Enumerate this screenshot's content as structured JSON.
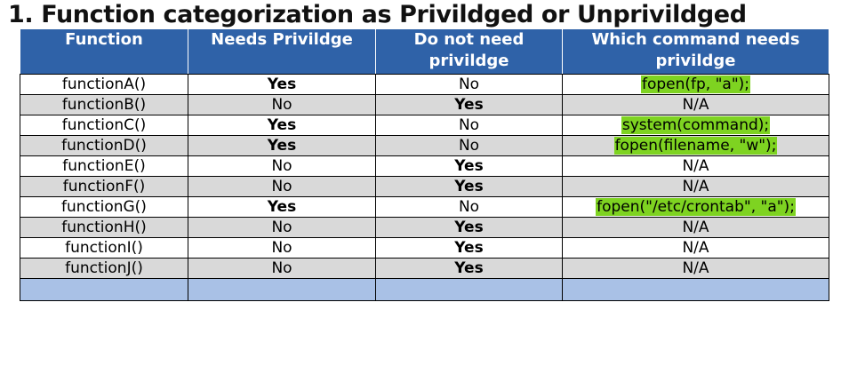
{
  "title": "1. Function categorization as Privildged or Unprivildged",
  "table": {
    "headers": [
      "Function",
      "Needs Privildge",
      "Do not need privildge",
      "Which command needs privildge"
    ],
    "rows": [
      {
        "function": "functionA()",
        "needs": "Yes",
        "not_need": "No",
        "command": "fopen(fp, \"a\");",
        "highlight": true
      },
      {
        "function": "functionB()",
        "needs": "No",
        "not_need": "Yes",
        "command": "N/A",
        "highlight": false
      },
      {
        "function": "functionC()",
        "needs": "Yes",
        "not_need": "No",
        "command": "system(command);",
        "highlight": true
      },
      {
        "function": "functionD()",
        "needs": "Yes",
        "not_need": "No",
        "command": "fopen(filename, \"w\");",
        "highlight": true
      },
      {
        "function": "functionE()",
        "needs": "No",
        "not_need": "Yes",
        "command": "N/A",
        "highlight": false
      },
      {
        "function": "functionF()",
        "needs": "No",
        "not_need": "Yes",
        "command": "N/A",
        "highlight": false
      },
      {
        "function": "functionG()",
        "needs": "Yes",
        "not_need": "No",
        "command": "fopen(\"/etc/crontab\", \"a\");",
        "highlight": true
      },
      {
        "function": "functionH()",
        "needs": "No",
        "not_need": "Yes",
        "command": "N/A",
        "highlight": false
      },
      {
        "function": "functionI()",
        "needs": "No",
        "not_need": "Yes",
        "command": "N/A",
        "highlight": false
      },
      {
        "function": "functionJ()",
        "needs": "No",
        "not_need": "Yes",
        "command": "N/A",
        "highlight": false
      }
    ]
  },
  "colors": {
    "header_bg": "#2f62a8",
    "yes_text": "#1f9a1f",
    "highlight_bg": "#7ed321",
    "row_alt_bg": "#d9d9d9",
    "empty_row_bg": "#a9c1e6"
  }
}
